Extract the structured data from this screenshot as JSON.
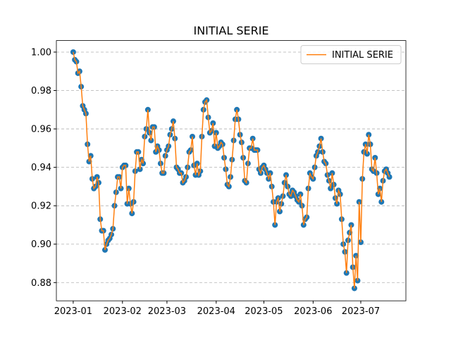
{
  "chart_data": {
    "type": "line",
    "title": "INITIAL SERIE",
    "series": [
      {
        "name": "INITIAL SERIE",
        "color": "#ff7f0e",
        "marker_color": "#1f77b4",
        "values": [
          1.0,
          0.996,
          0.995,
          0.989,
          0.99,
          0.982,
          0.972,
          0.97,
          0.968,
          0.952,
          0.943,
          0.946,
          0.934,
          0.929,
          0.93,
          0.935,
          0.932,
          0.913,
          0.907,
          0.907,
          0.897,
          0.9,
          0.902,
          0.903,
          0.905,
          0.908,
          0.92,
          0.927,
          0.935,
          0.935,
          0.929,
          0.94,
          0.941,
          0.941,
          0.921,
          0.929,
          0.921,
          0.916,
          0.922,
          0.938,
          0.948,
          0.948,
          0.939,
          0.944,
          0.942,
          0.956,
          0.96,
          0.97,
          0.958,
          0.954,
          0.961,
          0.961,
          0.948,
          0.951,
          0.949,
          0.942,
          0.937,
          0.937,
          0.946,
          0.949,
          0.951,
          0.957,
          0.96,
          0.964,
          0.955,
          0.94,
          0.939,
          0.937,
          0.937,
          0.932,
          0.933,
          0.935,
          0.94,
          0.948,
          0.949,
          0.956,
          0.941,
          0.936,
          0.942,
          0.936,
          0.938,
          0.956,
          0.97,
          0.974,
          0.975,
          0.966,
          0.958,
          0.959,
          0.963,
          0.951,
          0.958,
          0.95,
          0.951,
          0.953,
          0.952,
          0.945,
          0.939,
          0.931,
          0.93,
          0.935,
          0.944,
          0.954,
          0.965,
          0.97,
          0.965,
          0.957,
          0.953,
          0.945,
          0.933,
          0.932,
          0.942,
          0.95,
          0.95,
          0.955,
          0.949,
          0.949,
          0.949,
          0.939,
          0.937,
          0.94,
          0.941,
          0.939,
          0.937,
          0.934,
          0.937,
          0.93,
          0.922,
          0.91,
          0.922,
          0.924,
          0.917,
          0.921,
          0.925,
          0.932,
          0.936,
          0.93,
          0.926,
          0.925,
          0.928,
          0.927,
          0.925,
          0.923,
          0.922,
          0.926,
          0.92,
          0.91,
          0.913,
          0.914,
          0.929,
          0.937,
          0.935,
          0.934,
          0.94,
          0.946,
          0.948,
          0.951,
          0.955,
          0.948,
          0.943,
          0.942,
          0.936,
          0.933,
          0.929,
          0.937,
          0.931,
          0.924,
          0.921,
          0.928,
          0.926,
          0.913,
          0.9,
          0.896,
          0.885,
          0.902,
          0.906,
          0.91,
          0.888,
          0.877,
          0.894,
          0.881,
          0.922,
          0.901,
          0.934,
          0.948,
          0.952,
          0.947,
          0.957,
          0.952,
          0.939,
          0.938,
          0.945,
          0.937,
          0.926,
          0.929,
          0.922,
          0.933,
          0.938,
          0.939,
          0.937,
          0.935
        ]
      }
    ],
    "xlim": [
      -10.6,
      209.4
    ],
    "xticks": [
      {
        "value": 0,
        "label": "2023-01"
      },
      {
        "value": 31,
        "label": "2023-02"
      },
      {
        "value": 59,
        "label": "2023-03"
      },
      {
        "value": 90,
        "label": "2023-04"
      },
      {
        "value": 120,
        "label": "2023-05"
      },
      {
        "value": 151,
        "label": "2023-06"
      },
      {
        "value": 181,
        "label": "2023-07"
      }
    ],
    "ylim": [
      0.8705,
      1.006
    ],
    "yticks": [
      {
        "value": 0.88,
        "label": "0.88"
      },
      {
        "value": 0.9,
        "label": "0.90"
      },
      {
        "value": 0.92,
        "label": "0.92"
      },
      {
        "value": 0.94,
        "label": "0.94"
      },
      {
        "value": 0.96,
        "label": "0.96"
      },
      {
        "value": 0.98,
        "label": "0.98"
      },
      {
        "value": 1.0,
        "label": "1.00"
      }
    ],
    "grid": "y",
    "legend": "upper right"
  }
}
